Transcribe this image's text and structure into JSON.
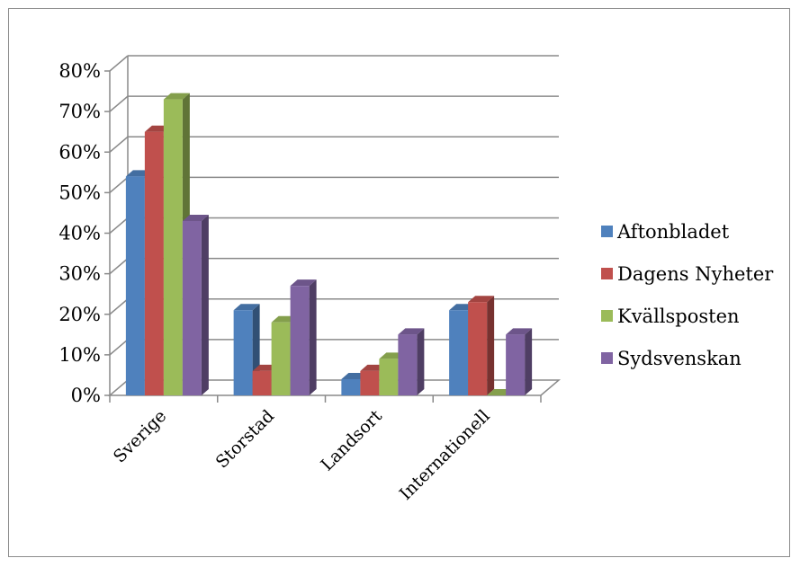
{
  "chart_data": {
    "type": "bar",
    "style": "3d-clustered-column",
    "categories": [
      "Sverige",
      "Storstad",
      "Landsort",
      "Internationell"
    ],
    "series": [
      {
        "name": "Aftonbladet",
        "values": [
          54,
          21,
          4,
          21
        ],
        "color": "#4F81BD"
      },
      {
        "name": "Dagens Nyheter",
        "values": [
          65,
          6,
          6,
          23
        ],
        "color": "#C0504D"
      },
      {
        "name": "Kvällsposten",
        "values": [
          73,
          18,
          9,
          0
        ],
        "color": "#9BBB59"
      },
      {
        "name": "Sydsvenskan",
        "values": [
          43,
          27,
          15,
          15
        ],
        "color": "#8064A2"
      }
    ],
    "yticks": [
      "0%",
      "10%",
      "20%",
      "30%",
      "40%",
      "50%",
      "60%",
      "70%",
      "80%"
    ],
    "ylim": [
      0,
      80
    ],
    "grid": true,
    "legend": "right"
  }
}
